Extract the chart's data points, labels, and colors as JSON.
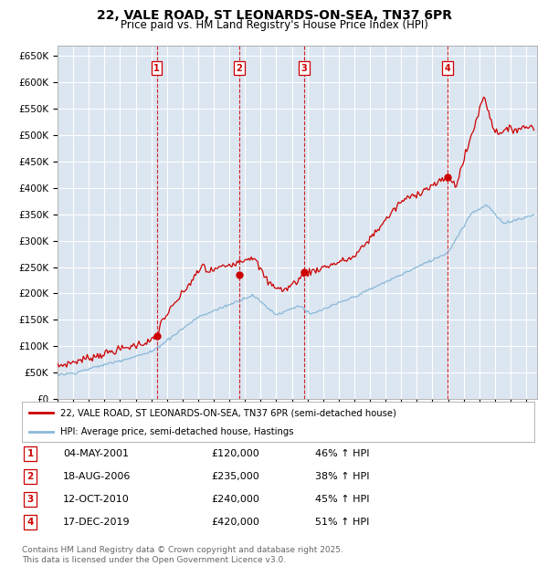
{
  "title": "22, VALE ROAD, ST LEONARDS-ON-SEA, TN37 6PR",
  "subtitle": "Price paid vs. HM Land Registry's House Price Index (HPI)",
  "background_color": "#ffffff",
  "plot_bg_color": "#dce6f1",
  "grid_color": "#ffffff",
  "red_line_color": "#cc0000",
  "blue_line_color": "#89b8d8",
  "marker_color": "#cc0000",
  "dashed_line_color": "#cc0000",
  "ylim": [
    0,
    670000
  ],
  "yticks": [
    0,
    50000,
    100000,
    150000,
    200000,
    250000,
    300000,
    350000,
    400000,
    450000,
    500000,
    550000,
    600000,
    650000
  ],
  "legend_red": "22, VALE ROAD, ST LEONARDS-ON-SEA, TN37 6PR (semi-detached house)",
  "legend_blue": "HPI: Average price, semi-detached house, Hastings",
  "transactions": [
    {
      "num": 1,
      "date": "04-MAY-2001",
      "price": 120000,
      "hpi_pct": "46%",
      "year": 2001.35
    },
    {
      "num": 2,
      "date": "18-AUG-2006",
      "price": 235000,
      "hpi_pct": "38%",
      "year": 2006.63
    },
    {
      "num": 3,
      "date": "12-OCT-2010",
      "price": 240000,
      "hpi_pct": "45%",
      "year": 2010.79
    },
    {
      "num": 4,
      "date": "17-DEC-2019",
      "price": 420000,
      "hpi_pct": "51%",
      "year": 2019.96
    }
  ],
  "table_entries": [
    {
      "num": "1",
      "date": "04-MAY-2001",
      "price": "£120,000",
      "hpi": "46% ↑ HPI"
    },
    {
      "num": "2",
      "date": "18-AUG-2006",
      "price": "£235,000",
      "hpi": "38% ↑ HPI"
    },
    {
      "num": "3",
      "date": "12-OCT-2010",
      "price": "£240,000",
      "hpi": "45% ↑ HPI"
    },
    {
      "num": "4",
      "date": "17-DEC-2019",
      "price": "£420,000",
      "hpi": "51% ↑ HPI"
    }
  ],
  "footer": "Contains HM Land Registry data © Crown copyright and database right 2025.\nThis data is licensed under the Open Government Licence v3.0.",
  "title_fontsize": 10,
  "subtitle_fontsize": 8.5,
  "tick_fontsize": 7.5,
  "legend_fontsize": 8,
  "footer_fontsize": 6.5
}
